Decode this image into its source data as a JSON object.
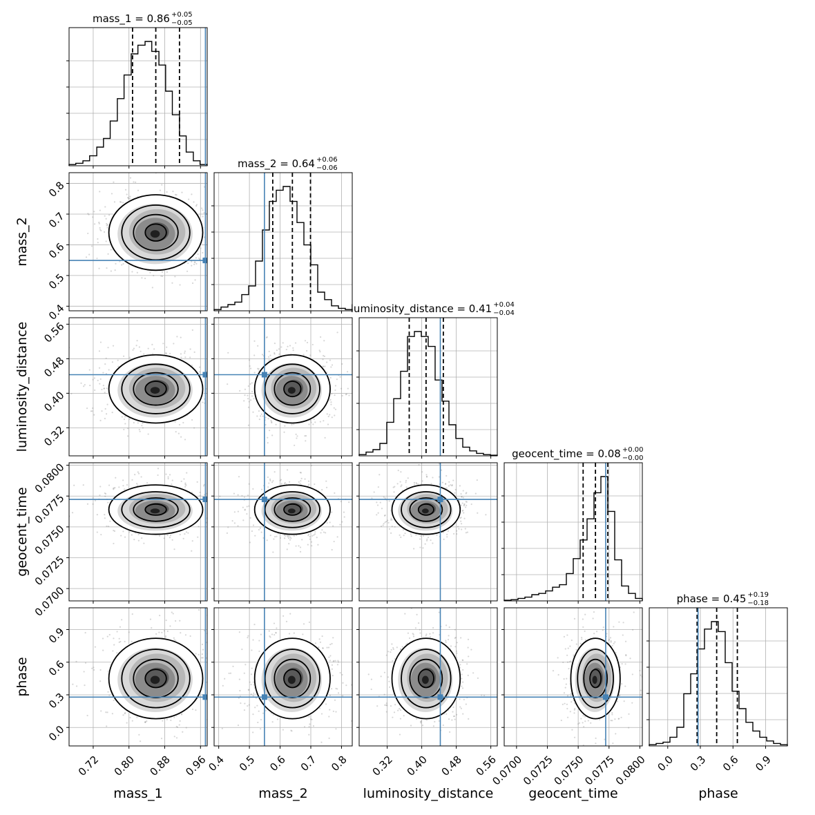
{
  "chart_data": {
    "type": "corner",
    "parameters": [
      "mass_1",
      "mass_2",
      "luminosity_distance",
      "geocent_time",
      "phase"
    ],
    "axis_labels": [
      "mass_1",
      "mass_2",
      "luminosity_distance",
      "geocent_time",
      "phase"
    ],
    "ranges": [
      [
        0.666,
        0.975
      ],
      [
        0.385,
        0.835
      ],
      [
        0.255,
        0.575
      ],
      [
        0.069,
        0.0802
      ],
      [
        -0.17,
        1.1
      ]
    ],
    "ticks": [
      [
        0.72,
        0.8,
        0.88,
        0.96
      ],
      [
        0.4,
        0.5,
        0.6,
        0.7,
        0.8
      ],
      [
        0.32,
        0.4,
        0.48,
        0.56
      ],
      [
        0.07,
        0.0725,
        0.075,
        0.0775,
        0.08
      ],
      [
        0.0,
        0.3,
        0.6,
        0.9
      ]
    ],
    "tick_labels": [
      [
        "0.72",
        "0.80",
        "0.88",
        "0.96"
      ],
      [
        "0.4",
        "0.5",
        "0.6",
        "0.7",
        "0.8"
      ],
      [
        "0.32",
        "0.40",
        "0.48",
        "0.56"
      ],
      [
        "0.0700",
        "0.0725",
        "0.0750",
        "0.0775",
        "0.0800"
      ],
      [
        "0.0",
        "0.3",
        "0.6",
        "0.9"
      ]
    ],
    "truths": [
      0.971,
      0.549,
      0.443,
      0.07723,
      0.279
    ],
    "medians": [
      0.86,
      0.64,
      0.41,
      0.0764,
      0.45
    ],
    "quantiles": [
      [
        0.808,
        0.86,
        0.913
      ],
      [
        0.576,
        0.64,
        0.699
      ],
      [
        0.371,
        0.41,
        0.45
      ],
      [
        0.0754,
        0.0764,
        0.0774
      ],
      [
        0.27,
        0.45,
        0.64
      ]
    ],
    "titles": [
      {
        "main": "mass_1 = 0.86",
        "sup": "+0.05",
        "sub": "−0.05"
      },
      {
        "main": "mass_2 = 0.64",
        "sup": "+0.06",
        "sub": "−0.06"
      },
      {
        "main": "luminosity_distance = 0.41",
        "sup": "+0.04",
        "sub": "−0.04"
      },
      {
        "main": "geocent_time = 0.08",
        "sup": "+0.00",
        "sub": "−0.00"
      },
      {
        "main": "phase = 0.45",
        "sup": "+0.19",
        "sub": "−0.18"
      }
    ],
    "histograms": [
      {
        "bins": [
          0.666,
          0.681,
          0.697,
          0.712,
          0.728,
          0.743,
          0.758,
          0.774,
          0.789,
          0.805,
          0.82,
          0.836,
          0.851,
          0.867,
          0.882,
          0.897,
          0.913,
          0.928,
          0.944,
          0.959,
          0.975
        ],
        "counts": [
          0.01,
          0.02,
          0.04,
          0.08,
          0.15,
          0.22,
          0.36,
          0.54,
          0.73,
          0.9,
          0.97,
          1.0,
          0.92,
          0.81,
          0.6,
          0.41,
          0.24,
          0.11,
          0.04,
          0.01
        ]
      },
      {
        "bins": [
          0.385,
          0.4075,
          0.43,
          0.4525,
          0.475,
          0.4975,
          0.52,
          0.5425,
          0.565,
          0.5875,
          0.61,
          0.6325,
          0.655,
          0.6775,
          0.7,
          0.7225,
          0.745,
          0.7675,
          0.79,
          0.8125,
          0.835
        ],
        "counts": [
          0.01,
          0.03,
          0.05,
          0.07,
          0.13,
          0.2,
          0.4,
          0.65,
          0.88,
          0.97,
          1.0,
          0.88,
          0.71,
          0.53,
          0.37,
          0.15,
          0.09,
          0.04,
          0.02,
          0.01
        ]
      },
      {
        "bins": [
          0.255,
          0.271,
          0.287,
          0.303,
          0.319,
          0.335,
          0.351,
          0.367,
          0.383,
          0.399,
          0.415,
          0.431,
          0.447,
          0.463,
          0.479,
          0.495,
          0.511,
          0.527,
          0.543,
          0.559,
          0.575
        ],
        "counts": [
          0.01,
          0.03,
          0.05,
          0.1,
          0.27,
          0.46,
          0.68,
          0.96,
          1.0,
          0.96,
          0.88,
          0.61,
          0.44,
          0.25,
          0.14,
          0.07,
          0.04,
          0.02,
          0.01,
          0.005
        ]
      },
      {
        "bins": [
          0.069,
          0.06956,
          0.07012,
          0.07068,
          0.07124,
          0.0718,
          0.07236,
          0.07292,
          0.07348,
          0.07404,
          0.0746,
          0.07516,
          0.07572,
          0.07628,
          0.07684,
          0.0774,
          0.07796,
          0.07852,
          0.07908,
          0.07964,
          0.0802
        ],
        "counts": [
          0.005,
          0.01,
          0.02,
          0.03,
          0.05,
          0.06,
          0.08,
          0.11,
          0.13,
          0.22,
          0.34,
          0.49,
          0.66,
          0.87,
          1.0,
          0.72,
          0.33,
          0.12,
          0.06,
          0.02
        ]
      },
      {
        "bins": [
          -0.17,
          -0.1065,
          -0.043,
          0.0205,
          0.084,
          0.1475,
          0.211,
          0.2745,
          0.338,
          0.4015,
          0.465,
          0.5285,
          0.592,
          0.6555,
          0.719,
          0.7825,
          0.846,
          0.9095,
          0.973,
          1.0365,
          1.1
        ],
        "counts": [
          0.01,
          0.02,
          0.03,
          0.07,
          0.15,
          0.42,
          0.58,
          0.78,
          0.94,
          1.0,
          0.92,
          0.67,
          0.44,
          0.3,
          0.19,
          0.12,
          0.07,
          0.04,
          0.02,
          0.01
        ]
      }
    ],
    "grid": true,
    "truth_color": "#4682b4",
    "hist_color": "#000000"
  }
}
